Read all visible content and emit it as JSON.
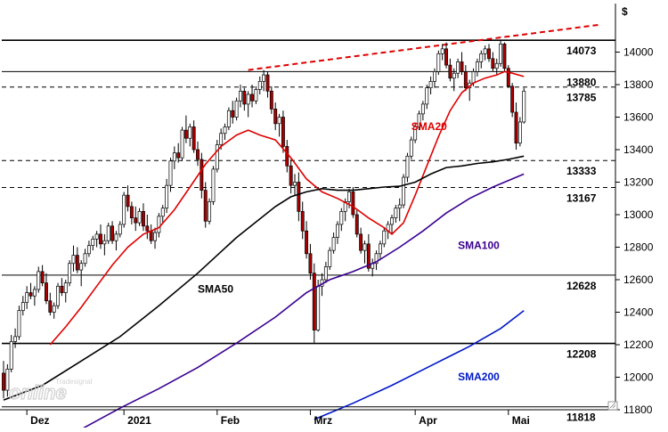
{
  "chart_data": {
    "type": "candlestick",
    "currency_label": "$",
    "ylim": [
      11800,
      14200
    ],
    "yticks": [
      11800,
      12000,
      12200,
      12400,
      12600,
      12800,
      13000,
      13200,
      13400,
      13600,
      13800,
      14000
    ],
    "ytick_labels": [
      "11800",
      "12000",
      "12200",
      "12400",
      "12600",
      "12800",
      "13000",
      "13200",
      "13400",
      "13600",
      "13800",
      "14000"
    ],
    "x_labels": [
      {
        "label": "Dez",
        "index": 6
      },
      {
        "label": "2021",
        "index": 31
      },
      {
        "label": "Feb",
        "index": 55
      },
      {
        "label": "Mrz",
        "index": 79
      },
      {
        "label": "Apr",
        "index": 106
      },
      {
        "label": "Mai",
        "index": 130
      }
    ],
    "levels": [
      {
        "value": 14073,
        "label": "14073",
        "style": "solid"
      },
      {
        "value": 13880,
        "label": "13880",
        "style": "solid"
      },
      {
        "value": 13785,
        "label": "13785",
        "style": "dashed"
      },
      {
        "value": 13333,
        "label": "13333",
        "style": "dashed"
      },
      {
        "value": 13167,
        "label": "13167",
        "style": "dashed"
      },
      {
        "value": 12628,
        "label": "12628",
        "style": "solid"
      },
      {
        "value": 12208,
        "label": "12208",
        "style": "solid"
      },
      {
        "value": 11818,
        "label": "11818",
        "style": "solid"
      }
    ],
    "trendline": {
      "from": {
        "index": 63,
        "value": 13890
      },
      "to": {
        "index": 154,
        "value": 14170
      },
      "color": "#e00000"
    },
    "candles": [
      [
        12025,
        12100,
        11870,
        11920
      ],
      [
        11920,
        12080,
        11880,
        12050
      ],
      [
        12050,
        12260,
        12030,
        12220
      ],
      [
        12220,
        12300,
        12180,
        12250
      ],
      [
        12250,
        12440,
        12230,
        12410
      ],
      [
        12410,
        12500,
        12380,
        12460
      ],
      [
        12460,
        12560,
        12420,
        12520
      ],
      [
        12520,
        12580,
        12480,
        12500
      ],
      [
        12500,
        12560,
        12440,
        12540
      ],
      [
        12540,
        12680,
        12520,
        12650
      ],
      [
        12650,
        12690,
        12560,
        12580
      ],
      [
        12580,
        12640,
        12450,
        12470
      ],
      [
        12470,
        12520,
        12380,
        12400
      ],
      [
        12400,
        12460,
        12360,
        12440
      ],
      [
        12440,
        12580,
        12420,
        12560
      ],
      [
        12560,
        12610,
        12500,
        12520
      ],
      [
        12520,
        12600,
        12460,
        12580
      ],
      [
        12580,
        12720,
        12560,
        12700
      ],
      [
        12700,
        12810,
        12650,
        12750
      ],
      [
        12750,
        12800,
        12640,
        12660
      ],
      [
        12660,
        12720,
        12560,
        12700
      ],
      [
        12700,
        12790,
        12680,
        12760
      ],
      [
        12760,
        12840,
        12740,
        12810
      ],
      [
        12810,
        12870,
        12780,
        12850
      ],
      [
        12850,
        12900,
        12800,
        12880
      ],
      [
        12880,
        12940,
        12790,
        12820
      ],
      [
        12820,
        12880,
        12750,
        12840
      ],
      [
        12840,
        12950,
        12820,
        12930
      ],
      [
        12930,
        12960,
        12820,
        12840
      ],
      [
        12840,
        12900,
        12780,
        12880
      ],
      [
        12880,
        12960,
        12860,
        12940
      ],
      [
        12940,
        13140,
        12920,
        13120
      ],
      [
        13120,
        13180,
        13020,
        13050
      ],
      [
        13050,
        13080,
        12940,
        12980
      ],
      [
        12980,
        13050,
        12900,
        12950
      ],
      [
        12950,
        13040,
        12930,
        13020
      ],
      [
        13020,
        13070,
        12900,
        12930
      ],
      [
        12930,
        13000,
        12850,
        12900
      ],
      [
        12900,
        12940,
        12820,
        12840
      ],
      [
        12840,
        12920,
        12790,
        12890
      ],
      [
        12890,
        13010,
        12860,
        12990
      ],
      [
        12990,
        13060,
        12950,
        13040
      ],
      [
        13040,
        13220,
        13010,
        13180
      ],
      [
        13180,
        13350,
        13140,
        13330
      ],
      [
        13330,
        13420,
        13280,
        13380
      ],
      [
        13380,
        13440,
        13320,
        13350
      ],
      [
        13350,
        13540,
        13330,
        13520
      ],
      [
        13520,
        13610,
        13440,
        13470
      ],
      [
        13470,
        13560,
        13420,
        13540
      ],
      [
        13540,
        13580,
        13380,
        13400
      ],
      [
        13400,
        13450,
        13300,
        13340
      ],
      [
        13340,
        13380,
        13100,
        13150
      ],
      [
        13150,
        13200,
        12920,
        12960
      ],
      [
        12960,
        13100,
        12940,
        13080
      ],
      [
        13080,
        13300,
        13060,
        13280
      ],
      [
        13280,
        13460,
        13260,
        13430
      ],
      [
        13430,
        13530,
        13400,
        13500
      ],
      [
        13500,
        13560,
        13460,
        13540
      ],
      [
        13540,
        13660,
        13520,
        13640
      ],
      [
        13640,
        13700,
        13560,
        13600
      ],
      [
        13600,
        13720,
        13580,
        13700
      ],
      [
        13700,
        13800,
        13660,
        13760
      ],
      [
        13760,
        13780,
        13640,
        13680
      ],
      [
        13680,
        13760,
        13600,
        13740
      ],
      [
        13740,
        13800,
        13660,
        13700
      ],
      [
        13700,
        13790,
        13680,
        13770
      ],
      [
        13770,
        13850,
        13740,
        13820
      ],
      [
        13820,
        13890,
        13760,
        13860
      ],
      [
        13860,
        13880,
        13720,
        13760
      ],
      [
        13760,
        13790,
        13620,
        13650
      ],
      [
        13650,
        13690,
        13520,
        13560
      ],
      [
        13560,
        13620,
        13480,
        13600
      ],
      [
        13600,
        13640,
        13380,
        13420
      ],
      [
        13420,
        13460,
        13260,
        13300
      ],
      [
        13300,
        13340,
        13130,
        13180
      ],
      [
        13180,
        13250,
        13120,
        13200
      ],
      [
        13200,
        13260,
        12960,
        13020
      ],
      [
        13020,
        13080,
        12850,
        12900
      ],
      [
        12900,
        12960,
        12730,
        12760
      ],
      [
        12760,
        12820,
        12600,
        12640
      ],
      [
        12640,
        12700,
        12210,
        12290
      ],
      [
        12290,
        12600,
        12280,
        12560
      ],
      [
        12560,
        12640,
        12500,
        12600
      ],
      [
        12600,
        12710,
        12580,
        12680
      ],
      [
        12680,
        12800,
        12660,
        12780
      ],
      [
        12780,
        12890,
        12760,
        12860
      ],
      [
        12860,
        12960,
        12820,
        12940
      ],
      [
        12940,
        13040,
        12900,
        13020
      ],
      [
        13020,
        13100,
        12960,
        13080
      ],
      [
        13080,
        13160,
        13040,
        13140
      ],
      [
        13140,
        13170,
        12980,
        13000
      ],
      [
        13000,
        13030,
        12860,
        12880
      ],
      [
        12880,
        12920,
        12760,
        12780
      ],
      [
        12780,
        12840,
        12700,
        12820
      ],
      [
        12820,
        12880,
        12650,
        12670
      ],
      [
        12670,
        12730,
        12620,
        12700
      ],
      [
        12700,
        12780,
        12660,
        12760
      ],
      [
        12760,
        12840,
        12720,
        12820
      ],
      [
        12820,
        12920,
        12800,
        12900
      ],
      [
        12900,
        12960,
        12850,
        12940
      ],
      [
        12940,
        13000,
        12880,
        12980
      ],
      [
        12980,
        13060,
        12950,
        13040
      ],
      [
        13040,
        13100,
        12960,
        13060
      ],
      [
        13060,
        13250,
        13040,
        13230
      ],
      [
        13230,
        13380,
        13200,
        13360
      ],
      [
        13360,
        13480,
        13340,
        13460
      ],
      [
        13460,
        13560,
        13440,
        13540
      ],
      [
        13540,
        13640,
        13520,
        13620
      ],
      [
        13620,
        13700,
        13580,
        13680
      ],
      [
        13680,
        13800,
        13650,
        13780
      ],
      [
        13780,
        13850,
        13740,
        13820
      ],
      [
        13820,
        13900,
        13780,
        13880
      ],
      [
        13880,
        14010,
        13860,
        13990
      ],
      [
        13990,
        14050,
        13950,
        14020
      ],
      [
        14020,
        14060,
        13900,
        13920
      ],
      [
        13920,
        13960,
        13820,
        13840
      ],
      [
        13840,
        13900,
        13760,
        13870
      ],
      [
        13870,
        13960,
        13840,
        13940
      ],
      [
        13940,
        14000,
        13860,
        13880
      ],
      [
        13880,
        13920,
        13760,
        13780
      ],
      [
        13780,
        13830,
        13700,
        13810
      ],
      [
        13810,
        13900,
        13790,
        13880
      ],
      [
        13880,
        13960,
        13850,
        13940
      ],
      [
        13940,
        14010,
        13900,
        13990
      ],
      [
        13990,
        14040,
        13950,
        14020
      ],
      [
        14020,
        14050,
        13940,
        13960
      ],
      [
        13960,
        14000,
        13880,
        13900
      ],
      [
        13900,
        13960,
        13860,
        13930
      ],
      [
        13930,
        14070,
        13910,
        14050
      ],
      [
        14050,
        14060,
        13880,
        13900
      ],
      [
        13900,
        13920,
        13780,
        13790
      ],
      [
        13790,
        13810,
        13600,
        13630
      ],
      [
        13630,
        13690,
        13400,
        13440
      ],
      [
        13440,
        13600,
        13420,
        13570
      ],
      [
        13570,
        13780,
        13560,
        13760
      ]
    ],
    "series": [
      {
        "name": "SMA20",
        "color": "#e00000",
        "label_at": {
          "index": 105,
          "value": 13520
        },
        "points": [
          [
            12,
            12200
          ],
          [
            16,
            12310
          ],
          [
            20,
            12430
          ],
          [
            24,
            12560
          ],
          [
            28,
            12690
          ],
          [
            32,
            12800
          ],
          [
            36,
            12880
          ],
          [
            40,
            12920
          ],
          [
            44,
            13030
          ],
          [
            48,
            13170
          ],
          [
            52,
            13310
          ],
          [
            56,
            13420
          ],
          [
            60,
            13490
          ],
          [
            63,
            13520
          ],
          [
            66,
            13490
          ],
          [
            70,
            13460
          ],
          [
            74,
            13350
          ],
          [
            78,
            13220
          ],
          [
            82,
            13140
          ],
          [
            86,
            13100
          ],
          [
            90,
            13050
          ],
          [
            94,
            12980
          ],
          [
            98,
            12920
          ],
          [
            100,
            12880
          ],
          [
            103,
            12950
          ],
          [
            106,
            13120
          ],
          [
            109,
            13300
          ],
          [
            112,
            13480
          ],
          [
            115,
            13640
          ],
          [
            118,
            13750
          ],
          [
            121,
            13810
          ],
          [
            124,
            13840
          ],
          [
            127,
            13860
          ],
          [
            129,
            13880
          ],
          [
            131,
            13870
          ],
          [
            134,
            13850
          ]
        ]
      },
      {
        "name": "SMA50",
        "color": "#000000",
        "label_at": {
          "index": 50,
          "value": 12520
        },
        "points": [
          [
            0,
            11860
          ],
          [
            10,
            11950
          ],
          [
            20,
            12100
          ],
          [
            30,
            12250
          ],
          [
            40,
            12440
          ],
          [
            50,
            12640
          ],
          [
            60,
            12860
          ],
          [
            70,
            13050
          ],
          [
            74,
            13110
          ],
          [
            78,
            13140
          ],
          [
            82,
            13160
          ],
          [
            86,
            13150
          ],
          [
            90,
            13150
          ],
          [
            94,
            13160
          ],
          [
            98,
            13170
          ],
          [
            102,
            13175
          ],
          [
            106,
            13200
          ],
          [
            110,
            13250
          ],
          [
            114,
            13290
          ],
          [
            118,
            13300
          ],
          [
            122,
            13315
          ],
          [
            126,
            13325
          ],
          [
            130,
            13340
          ],
          [
            134,
            13360
          ]
        ]
      },
      {
        "name": "SMA100",
        "color": "#3a0090",
        "label_at": {
          "index": 117,
          "value": 12790
        },
        "points": [
          [
            20,
            11680
          ],
          [
            30,
            11810
          ],
          [
            40,
            11930
          ],
          [
            50,
            12060
          ],
          [
            60,
            12210
          ],
          [
            70,
            12370
          ],
          [
            78,
            12520
          ],
          [
            84,
            12600
          ],
          [
            90,
            12650
          ],
          [
            96,
            12710
          ],
          [
            102,
            12800
          ],
          [
            108,
            12900
          ],
          [
            114,
            13010
          ],
          [
            120,
            13100
          ],
          [
            126,
            13170
          ],
          [
            134,
            13250
          ]
        ]
      },
      {
        "name": "SMA200",
        "color": "#0018c8",
        "label_at": {
          "index": 117,
          "value": 11980
        },
        "points": [
          [
            80,
            11740
          ],
          [
            90,
            11840
          ],
          [
            100,
            11950
          ],
          [
            110,
            12070
          ],
          [
            120,
            12190
          ],
          [
            128,
            12300
          ],
          [
            134,
            12410
          ]
        ]
      }
    ],
    "watermark": {
      "small": "Tradesignal",
      "big": "online"
    }
  }
}
